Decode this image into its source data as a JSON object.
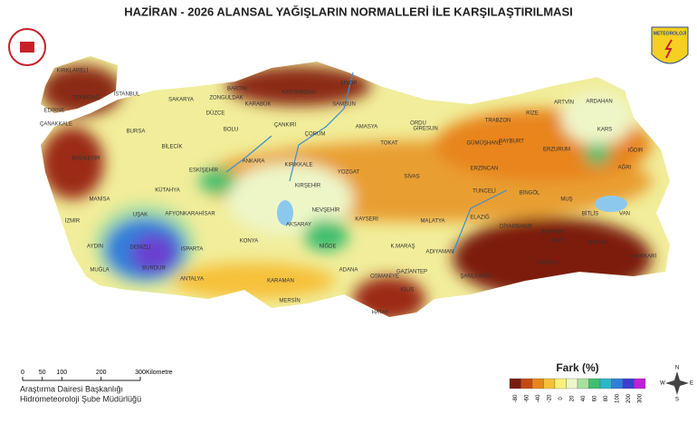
{
  "title": "HAZİRAN - 2026 ALANSAL YAĞIŞLARIN NORMALLERİ İLE KARŞILAŞTIRILMASI",
  "logo_text": "METEOROLOJİ",
  "legend": {
    "title": "Fark (%)",
    "ticks": [
      -80,
      -60,
      -40,
      -20,
      0,
      20,
      40,
      60,
      80,
      100,
      200,
      300
    ],
    "colors": [
      "#7b1b10",
      "#c44a12",
      "#e8851a",
      "#f6c13a",
      "#f9f27a",
      "#eef6c8",
      "#a8e0a0",
      "#3fbf6e",
      "#2bb7c9",
      "#2f7fd9",
      "#3b3fd0",
      "#c020d8"
    ]
  },
  "scale": {
    "ticks": [
      0,
      50,
      100,
      200,
      300
    ],
    "unit": "Kilometre"
  },
  "footer": [
    "Araştırma Dairesi Başkanlığı",
    "Hidrometeoroloji Şube Müdürlüğü"
  ],
  "compass": [
    "N",
    "E",
    "S",
    "W"
  ],
  "provinces": [
    "KIRKLARELİ",
    "EDİRNE",
    "TEKİRDAĞ",
    "İSTANBUL",
    "ÇANAKKALE",
    "BALIKESİR",
    "BURSA",
    "SAKARYA",
    "ZONGULDAK",
    "BARTIN",
    "KARABÜK",
    "DÜZCE",
    "BOLU",
    "BİLECİK",
    "KASTAMONU",
    "SİNOP",
    "SAMSUN",
    "ÇANKIRI",
    "ÇORUM",
    "AMASYA",
    "ORDU",
    "GİRESUN",
    "TRABZON",
    "RİZE",
    "ARTVİN",
    "ARDAHAN",
    "KARS",
    "IĞDIR",
    "AĞRI",
    "ERZURUM",
    "BAYBURT",
    "GÜMÜŞHANE",
    "TOKAT",
    "YOZGAT",
    "SİVAS",
    "ERZİNCAN",
    "TUNCELİ",
    "BİNGÖL",
    "MUŞ",
    "BİTLİS",
    "VAN",
    "HAKKARİ",
    "ŞIRNAK",
    "SİİRT",
    "BATMAN",
    "MARDİN",
    "DİYARBAKIR",
    "ELAZIĞ",
    "MALATYA",
    "ADIYAMAN",
    "ŞANLIURFA",
    "GAZİANTEP",
    "KİLİS",
    "HATAY",
    "OSMANİYE",
    "K.MARAŞ",
    "ADANA",
    "MERSİN",
    "KARAMAN",
    "KONYA",
    "NİĞDE",
    "AKSARAY",
    "NEVŞEHİR",
    "KIRŞEHİR",
    "KAYSERİ",
    "KIRIKKALE",
    "ANKARA",
    "ESKİŞEHİR",
    "KÜTAHYA",
    "AFYONKARAHİSAR",
    "UŞAK",
    "MANİSA",
    "İZMİR",
    "AYDIN",
    "DENİZLİ",
    "MUĞLA",
    "BURDUR",
    "ISPARTA",
    "ANTALYA"
  ]
}
